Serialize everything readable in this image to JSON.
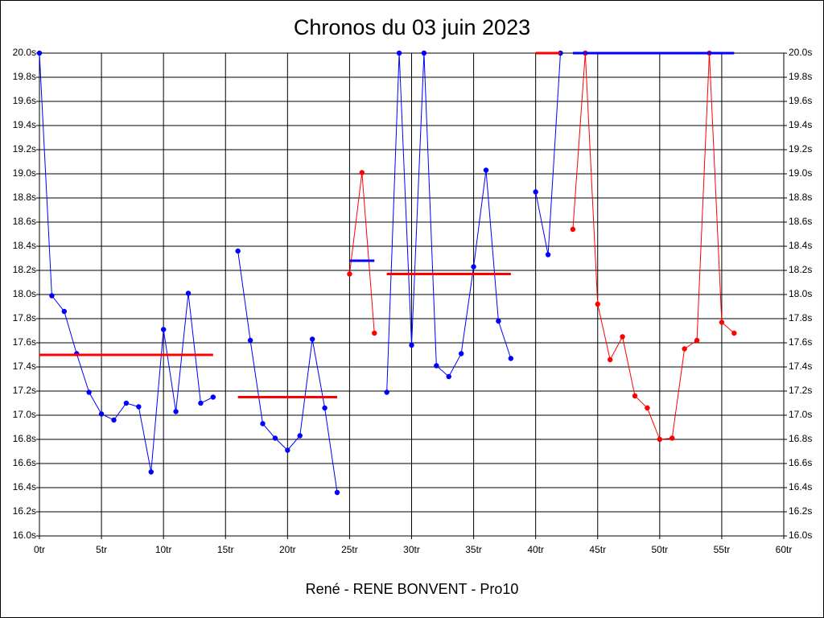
{
  "chart_data": {
    "type": "line",
    "title": "Chronos du 03 juin 2023",
    "x_label": "René - RENE BONVENT - Pro10",
    "xlim": [
      0,
      60
    ],
    "ylim": [
      16.0,
      20.0
    ],
    "grid": true,
    "xticks": [
      {
        "value": 0,
        "label": "0tr"
      },
      {
        "value": 5,
        "label": "5tr"
      },
      {
        "value": 10,
        "label": "10tr"
      },
      {
        "value": 15,
        "label": "15tr"
      },
      {
        "value": 20,
        "label": "20tr"
      },
      {
        "value": 25,
        "label": "25tr"
      },
      {
        "value": 30,
        "label": "30tr"
      },
      {
        "value": 35,
        "label": "35tr"
      },
      {
        "value": 40,
        "label": "40tr"
      },
      {
        "value": 45,
        "label": "45tr"
      },
      {
        "value": 50,
        "label": "50tr"
      },
      {
        "value": 55,
        "label": "55tr"
      },
      {
        "value": 60,
        "label": "60tr"
      }
    ],
    "yticks": [
      {
        "value": 16.0,
        "label": "16.0s"
      },
      {
        "value": 16.2,
        "label": "16.2s"
      },
      {
        "value": 16.4,
        "label": "16.4s"
      },
      {
        "value": 16.6,
        "label": "16.6s"
      },
      {
        "value": 16.8,
        "label": "16.8s"
      },
      {
        "value": 17.0,
        "label": "17.0s"
      },
      {
        "value": 17.2,
        "label": "17.2s"
      },
      {
        "value": 17.4,
        "label": "17.4s"
      },
      {
        "value": 17.6,
        "label": "17.6s"
      },
      {
        "value": 17.8,
        "label": "17.8s"
      },
      {
        "value": 18.0,
        "label": "18.0s"
      },
      {
        "value": 18.2,
        "label": "18.2s"
      },
      {
        "value": 18.4,
        "label": "18.4s"
      },
      {
        "value": 18.6,
        "label": "18.6s"
      },
      {
        "value": 18.8,
        "label": "18.8s"
      },
      {
        "value": 19.0,
        "label": "19.0s"
      },
      {
        "value": 19.2,
        "label": "19.2s"
      },
      {
        "value": 19.4,
        "label": "19.4s"
      },
      {
        "value": 19.6,
        "label": "19.6s"
      },
      {
        "value": 19.8,
        "label": "19.8s"
      },
      {
        "value": 20.0,
        "label": "20.0s"
      }
    ],
    "series": [
      {
        "color": "#0000ff",
        "x": [
          0,
          1,
          2,
          3,
          4,
          5,
          6,
          7,
          8,
          9,
          10,
          11,
          12,
          13,
          14
        ],
        "values": [
          20.0,
          17.99,
          17.86,
          17.51,
          17.19,
          17.01,
          16.96,
          17.1,
          17.07,
          16.53,
          17.71,
          17.03,
          18.01,
          17.1,
          17.15
        ]
      },
      {
        "color": "#0000ff",
        "x": [
          16,
          17,
          18,
          19,
          20,
          21,
          22,
          23,
          24
        ],
        "values": [
          18.36,
          17.62,
          16.93,
          16.81,
          16.71,
          16.83,
          17.63,
          17.06,
          16.36
        ]
      },
      {
        "color": "#ff0000",
        "x": [
          25,
          26,
          27
        ],
        "values": [
          18.17,
          19.01,
          17.68
        ]
      },
      {
        "color": "#0000ff",
        "x": [
          28,
          29,
          30,
          31,
          32,
          33,
          34,
          35,
          36,
          37,
          38
        ],
        "values": [
          17.19,
          20.0,
          17.58,
          20.0,
          17.41,
          17.32,
          17.51,
          18.23,
          19.03,
          17.78,
          17.47
        ]
      },
      {
        "color": "#0000ff",
        "x": [
          40,
          41,
          42
        ],
        "values": [
          18.85,
          18.33,
          20.0
        ]
      },
      {
        "color": "#ff0000",
        "x": [
          43,
          44,
          45,
          46,
          47,
          48,
          49,
          50,
          51,
          52,
          53,
          54,
          55,
          56
        ],
        "values": [
          18.54,
          20.0,
          17.92,
          17.46,
          17.65,
          17.16,
          17.06,
          16.8,
          16.81,
          17.55,
          17.62,
          20.0,
          17.77,
          17.68
        ]
      }
    ],
    "averages": [
      {
        "color": "#ff0000",
        "xlim": [
          0,
          14
        ],
        "value": 17.5
      },
      {
        "color": "#ff0000",
        "xlim": [
          16,
          24
        ],
        "value": 17.15
      },
      {
        "color": "#0000ff",
        "xlim": [
          25,
          27
        ],
        "value": 18.28
      },
      {
        "color": "#ff0000",
        "xlim": [
          28,
          38
        ],
        "value": 18.17
      },
      {
        "color": "#ff0000",
        "xlim": [
          40,
          42
        ],
        "value": 20.0
      },
      {
        "color": "#0000ff",
        "xlim": [
          43,
          56
        ],
        "value": 20.0
      }
    ]
  }
}
